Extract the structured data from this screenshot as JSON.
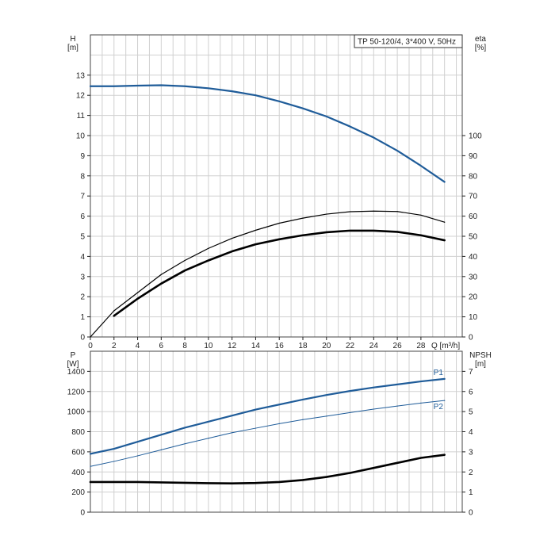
{
  "chart_data": [
    {
      "type": "line",
      "title": "TP 50-120/4, 3*400 V, 50Hz",
      "xlabel": "Q [m³/h]",
      "xlim": [
        0,
        31.5
      ],
      "x_ticks": [
        "0",
        "2",
        "4",
        "6",
        "8",
        "10",
        "12",
        "14",
        "16",
        "18",
        "20",
        "22",
        "24",
        "26",
        "28"
      ],
      "left_axis": {
        "label_line1": "H",
        "label_line2": "[m]",
        "ylim": [
          0,
          15
        ],
        "ticks": [
          "0",
          "1",
          "2",
          "3",
          "4",
          "5",
          "6",
          "7",
          "8",
          "9",
          "10",
          "11",
          "12",
          "13"
        ]
      },
      "right_axis": {
        "label_line1": "eta",
        "label_line2": "[%]",
        "ylim": [
          0,
          150
        ],
        "ticks": [
          "0",
          "10",
          "20",
          "30",
          "40",
          "50",
          "60",
          "70",
          "80",
          "90",
          "100"
        ]
      },
      "grid": true,
      "series": [
        {
          "name": "",
          "axis": "left",
          "color": "#1f5c99",
          "x": [
            0,
            2,
            4,
            6,
            8,
            10,
            12,
            14,
            16,
            18,
            20,
            22,
            24,
            26,
            28,
            30
          ],
          "y": [
            12.45,
            12.45,
            12.48,
            12.5,
            12.45,
            12.35,
            12.2,
            12.0,
            11.7,
            11.35,
            10.95,
            10.45,
            9.9,
            9.25,
            8.5,
            7.7
          ]
        },
        {
          "name": "",
          "axis": "right",
          "color": "#000000",
          "x": [
            0,
            2,
            4,
            6,
            8,
            10,
            12,
            14,
            16,
            18,
            20,
            22,
            24,
            26,
            28,
            30
          ],
          "y": [
            0,
            13,
            22,
            31,
            38,
            44,
            49,
            53,
            56.5,
            59,
            61,
            62.2,
            62.5,
            62.3,
            60.5,
            57
          ]
        },
        {
          "name": "",
          "axis": "right",
          "color": "#000000",
          "x": [
            2,
            4,
            6,
            8,
            10,
            12,
            14,
            16,
            18,
            20,
            22,
            24,
            26,
            28,
            30
          ],
          "y": [
            10.5,
            19,
            26.5,
            33,
            38,
            42.5,
            46,
            48.5,
            50.5,
            52,
            52.8,
            52.8,
            52.2,
            50.5,
            48
          ]
        }
      ]
    },
    {
      "type": "line",
      "xlim": [
        0,
        31.5
      ],
      "left_axis": {
        "label_line1": "P",
        "label_line2": "[W]",
        "ylim": [
          0,
          1600
        ],
        "ticks": [
          "0",
          "200",
          "400",
          "600",
          "800",
          "1000",
          "1200",
          "1400"
        ]
      },
      "right_axis": {
        "label_line1": "NPSH",
        "label_line2": "[m]",
        "ylim": [
          0,
          8
        ],
        "ticks": [
          "0",
          "1",
          "2",
          "3",
          "4",
          "5",
          "6",
          "7"
        ]
      },
      "grid": true,
      "series": [
        {
          "name": "P1",
          "axis": "left",
          "color": "#1f5c99",
          "x": [
            0,
            2,
            4,
            6,
            8,
            10,
            12,
            14,
            16,
            18,
            20,
            22,
            24,
            26,
            28,
            30
          ],
          "y": [
            580,
            630,
            700,
            770,
            840,
            900,
            960,
            1020,
            1070,
            1120,
            1165,
            1205,
            1240,
            1270,
            1300,
            1325
          ]
        },
        {
          "name": "P2",
          "axis": "left",
          "color": "#1f5c99",
          "x": [
            0,
            2,
            4,
            6,
            8,
            10,
            12,
            14,
            16,
            18,
            20,
            22,
            24,
            26,
            28,
            30
          ],
          "y": [
            455,
            505,
            560,
            620,
            680,
            735,
            790,
            835,
            880,
            920,
            955,
            990,
            1025,
            1055,
            1085,
            1110
          ]
        },
        {
          "name": "",
          "axis": "right",
          "color": "#000000",
          "x": [
            0,
            2,
            4,
            6,
            8,
            10,
            12,
            14,
            16,
            18,
            20,
            22,
            24,
            26,
            28,
            30
          ],
          "y": [
            1.5,
            1.5,
            1.5,
            1.48,
            1.46,
            1.44,
            1.43,
            1.45,
            1.5,
            1.6,
            1.75,
            1.95,
            2.2,
            2.45,
            2.7,
            2.85
          ]
        }
      ]
    }
  ]
}
